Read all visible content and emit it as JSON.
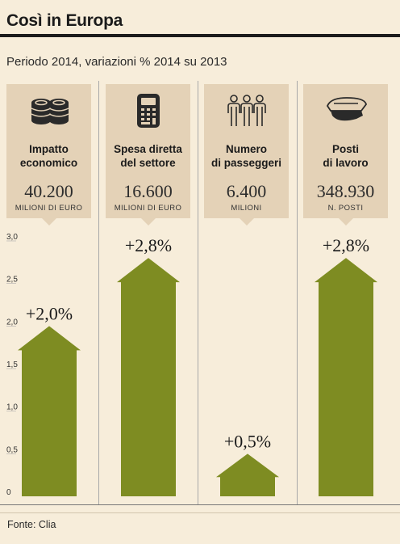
{
  "header": {
    "title": "Così in Europa",
    "subtitle": "Periodo 2014, variazioni % 2014 su 2013"
  },
  "colors": {
    "arrow": "#7e8c22",
    "card": "#e4d2b7",
    "background": "#f7edda"
  },
  "cards": [
    {
      "icon": "coins-icon",
      "label_line1": "Impatto",
      "label_line2": "economico",
      "value": "40.200",
      "unit": "MILIONI DI EURO"
    },
    {
      "icon": "calculator-icon",
      "label_line1": "Spesa diretta",
      "label_line2": "del settore",
      "value": "16.600",
      "unit": "MILIONI DI EURO"
    },
    {
      "icon": "passengers-icon",
      "label_line1": "Numero",
      "label_line2": "di passeggeri",
      "value": "6.400",
      "unit": "MILIONI"
    },
    {
      "icon": "captain-hat-icon",
      "label_line1": "Posti",
      "label_line2": "di lavoro",
      "value": "348.930",
      "unit": "N. POSTI"
    }
  ],
  "chart_data": {
    "type": "bar",
    "categories": [
      "Impatto economico",
      "Spesa diretta del settore",
      "Numero di passeggeri",
      "Posti di lavoro"
    ],
    "values": [
      2.0,
      2.8,
      0.5,
      2.8
    ],
    "value_labels": [
      "+2,0%",
      "+2,8%",
      "+0,5%",
      "+2,8%"
    ],
    "ylim": [
      0,
      3.0
    ],
    "yticks": [
      0,
      0.5,
      1.0,
      1.5,
      2.0,
      2.5,
      3.0
    ],
    "ytick_labels": [
      "0",
      "0,5",
      "1,0",
      "1,5",
      "2,0",
      "2,5",
      "3,0"
    ]
  },
  "source": "Fonte: Clia"
}
